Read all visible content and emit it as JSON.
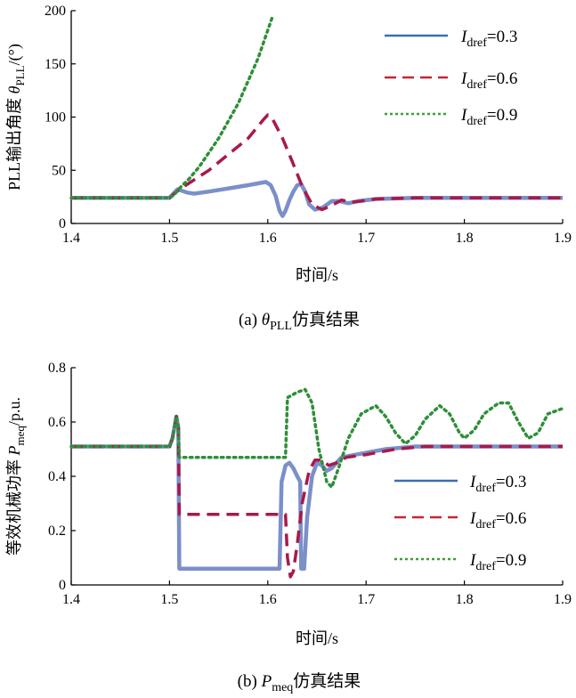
{
  "chart_data": [
    {
      "type": "line",
      "caption": {
        "prefix": "(a) ",
        "symbol": "θ",
        "sub": "PLL",
        "suffix": "仿真结果"
      },
      "ylabel": {
        "main": "PLL输出角度 ",
        "symbol": "θ",
        "sub": "PLL",
        "suffix": "/(°)"
      },
      "xlabel": "时间/s",
      "xlim": [
        1.4,
        1.9
      ],
      "ylim": [
        0,
        200
      ],
      "xticks": [
        "1.4",
        "1.5",
        "1.6",
        "1.7",
        "1.8",
        "1.9"
      ],
      "yticks": [
        "0",
        "50",
        "100",
        "150",
        "200"
      ],
      "legend_position": "top-right",
      "series": [
        {
          "name": {
            "sym": "I",
            "sub": "dref",
            "val": "=0.3"
          },
          "color": "#7b8fc9",
          "style": "solid",
          "legend_color": "#3a6fb0",
          "points": [
            [
              1.4,
              24
            ],
            [
              1.5,
              24
            ],
            [
              1.503,
              27
            ],
            [
              1.508,
              32
            ],
            [
              1.512,
              31
            ],
            [
              1.518,
              29
            ],
            [
              1.525,
              28
            ],
            [
              1.54,
              30
            ],
            [
              1.56,
              33
            ],
            [
              1.58,
              36
            ],
            [
              1.598,
              39
            ],
            [
              1.603,
              36
            ],
            [
              1.608,
              26
            ],
            [
              1.612,
              12
            ],
            [
              1.615,
              7
            ],
            [
              1.618,
              12
            ],
            [
              1.622,
              22
            ],
            [
              1.626,
              30
            ],
            [
              1.63,
              36
            ],
            [
              1.634,
              37
            ],
            [
              1.638,
              30
            ],
            [
              1.642,
              18
            ],
            [
              1.648,
              13
            ],
            [
              1.656,
              15
            ],
            [
              1.665,
              21
            ],
            [
              1.673,
              21
            ],
            [
              1.682,
              19
            ],
            [
              1.692,
              21
            ],
            [
              1.71,
              23
            ],
            [
              1.75,
              24
            ],
            [
              1.9,
              24
            ]
          ]
        },
        {
          "name": {
            "sym": "I",
            "sub": "dref",
            "val": "=0.6"
          },
          "color": "#a8194a",
          "style": "dashed",
          "legend_color": "#c0283a",
          "points": [
            [
              1.4,
              24
            ],
            [
              1.5,
              24
            ],
            [
              1.505,
              28
            ],
            [
              1.51,
              32
            ],
            [
              1.52,
              38
            ],
            [
              1.54,
              50
            ],
            [
              1.56,
              65
            ],
            [
              1.58,
              80
            ],
            [
              1.595,
              97
            ],
            [
              1.6,
              102
            ],
            [
              1.605,
              98
            ],
            [
              1.615,
              80
            ],
            [
              1.625,
              58
            ],
            [
              1.635,
              35
            ],
            [
              1.645,
              18
            ],
            [
              1.655,
              13
            ],
            [
              1.665,
              17
            ],
            [
              1.675,
              22
            ],
            [
              1.685,
              20
            ],
            [
              1.695,
              21
            ],
            [
              1.71,
              23
            ],
            [
              1.75,
              24
            ],
            [
              1.9,
              24
            ]
          ]
        },
        {
          "name": {
            "sym": "I",
            "sub": "dref",
            "val": "=0.9"
          },
          "color": "#2f8f3a",
          "style": "dotted",
          "legend_color": "#3a9f3a",
          "points": [
            [
              1.4,
              24
            ],
            [
              1.5,
              24
            ],
            [
              1.505,
              27
            ],
            [
              1.51,
              33
            ],
            [
              1.52,
              42
            ],
            [
              1.53,
              53
            ],
            [
              1.55,
              80
            ],
            [
              1.57,
              113
            ],
            [
              1.59,
              155
            ],
            [
              1.605,
              195
            ]
          ]
        }
      ]
    },
    {
      "type": "line",
      "caption": {
        "prefix": "(b) ",
        "symbol": "P",
        "sub": "meq",
        "suffix": "仿真结果"
      },
      "ylabel": {
        "main": "等效机械功率 ",
        "symbol": "P",
        "sub": "meq",
        "suffix": "/p.u."
      },
      "xlabel": "时间/s",
      "xlim": [
        1.4,
        1.9
      ],
      "ylim": [
        0,
        0.8
      ],
      "xticks": [
        "1.4",
        "1.5",
        "1.6",
        "1.7",
        "1.8",
        "1.9"
      ],
      "yticks": [
        "0",
        "0.2",
        "0.4",
        "0.6",
        "0.8"
      ],
      "legend_position": "bottom-right",
      "series": [
        {
          "name": {
            "sym": "I",
            "sub": "dref",
            "val": "=0.3"
          },
          "color": "#7b8fc9",
          "style": "solid",
          "legend_color": "#3a6fb0",
          "points": [
            [
              1.4,
              0.51
            ],
            [
              1.5,
              0.51
            ],
            [
              1.503,
              0.54
            ],
            [
              1.507,
              0.62
            ],
            [
              1.509,
              0.58
            ],
            [
              1.51,
              0.06
            ],
            [
              1.612,
              0.06
            ],
            [
              1.614,
              0.38
            ],
            [
              1.618,
              0.44
            ],
            [
              1.622,
              0.45
            ],
            [
              1.626,
              0.43
            ],
            [
              1.63,
              0.4
            ],
            [
              1.633,
              0.38
            ],
            [
              1.634,
              0.06
            ],
            [
              1.637,
              0.06
            ],
            [
              1.64,
              0.25
            ],
            [
              1.645,
              0.4
            ],
            [
              1.65,
              0.45
            ],
            [
              1.655,
              0.44
            ],
            [
              1.66,
              0.42
            ],
            [
              1.665,
              0.43
            ],
            [
              1.675,
              0.47
            ],
            [
              1.69,
              0.48
            ],
            [
              1.72,
              0.5
            ],
            [
              1.75,
              0.51
            ],
            [
              1.9,
              0.51
            ]
          ]
        },
        {
          "name": {
            "sym": "I",
            "sub": "dref",
            "val": "=0.6"
          },
          "color": "#a8194a",
          "style": "dashed",
          "legend_color": "#c0283a",
          "points": [
            [
              1.4,
              0.51
            ],
            [
              1.5,
              0.51
            ],
            [
              1.503,
              0.54
            ],
            [
              1.507,
              0.62
            ],
            [
              1.509,
              0.58
            ],
            [
              1.51,
              0.26
            ],
            [
              1.618,
              0.26
            ],
            [
              1.62,
              0.1
            ],
            [
              1.623,
              0.03
            ],
            [
              1.626,
              0.05
            ],
            [
              1.63,
              0.15
            ],
            [
              1.635,
              0.3
            ],
            [
              1.642,
              0.42
            ],
            [
              1.648,
              0.46
            ],
            [
              1.655,
              0.46
            ],
            [
              1.662,
              0.44
            ],
            [
              1.67,
              0.45
            ],
            [
              1.68,
              0.47
            ],
            [
              1.7,
              0.48
            ],
            [
              1.73,
              0.5
            ],
            [
              1.76,
              0.51
            ],
            [
              1.9,
              0.51
            ]
          ]
        },
        {
          "name": {
            "sym": "I",
            "sub": "dref",
            "val": "=0.9"
          },
          "color": "#2f8f3a",
          "style": "dotted",
          "legend_color": "#3a9f3a",
          "points": [
            [
              1.4,
              0.51
            ],
            [
              1.5,
              0.51
            ],
            [
              1.503,
              0.54
            ],
            [
              1.507,
              0.62
            ],
            [
              1.509,
              0.58
            ],
            [
              1.51,
              0.47
            ],
            [
              1.618,
              0.47
            ],
            [
              1.62,
              0.69
            ],
            [
              1.63,
              0.71
            ],
            [
              1.638,
              0.72
            ],
            [
              1.645,
              0.67
            ],
            [
              1.652,
              0.5
            ],
            [
              1.66,
              0.38
            ],
            [
              1.665,
              0.36
            ],
            [
              1.672,
              0.43
            ],
            [
              1.682,
              0.54
            ],
            [
              1.695,
              0.63
            ],
            [
              1.71,
              0.66
            ],
            [
              1.72,
              0.62
            ],
            [
              1.73,
              0.56
            ],
            [
              1.74,
              0.52
            ],
            [
              1.75,
              0.55
            ],
            [
              1.76,
              0.61
            ],
            [
              1.775,
              0.66
            ],
            [
              1.785,
              0.63
            ],
            [
              1.795,
              0.56
            ],
            [
              1.8,
              0.54
            ],
            [
              1.81,
              0.57
            ],
            [
              1.82,
              0.63
            ],
            [
              1.835,
              0.67
            ],
            [
              1.845,
              0.67
            ],
            [
              1.855,
              0.6
            ],
            [
              1.865,
              0.54
            ],
            [
              1.875,
              0.56
            ],
            [
              1.885,
              0.63
            ],
            [
              1.9,
              0.65
            ]
          ]
        }
      ]
    }
  ]
}
